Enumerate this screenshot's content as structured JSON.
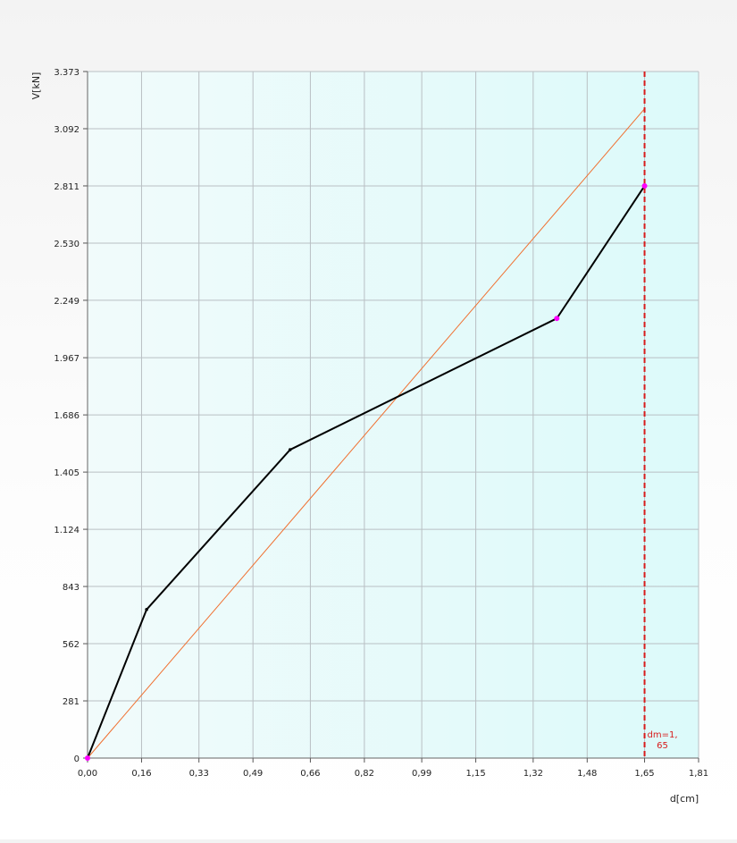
{
  "chart_data": {
    "type": "line",
    "xlabel": "d[cm]",
    "ylabel": "V[kN]",
    "xlim": [
      0,
      1.81
    ],
    "ylim": [
      0,
      3373
    ],
    "x_ticks": [
      0,
      0.16,
      0.33,
      0.49,
      0.66,
      0.82,
      0.99,
      1.15,
      1.32,
      1.48,
      1.65,
      1.81
    ],
    "x_tick_labels": [
      "0,00",
      "0,16",
      "0,33",
      "0,49",
      "0,66",
      "0,82",
      "0,99",
      "1,15",
      "1,32",
      "1,48",
      "1,65",
      "1,81"
    ],
    "y_ticks": [
      0,
      281,
      562,
      843,
      1124,
      1405,
      1686,
      1967,
      2249,
      2530,
      2811,
      3092,
      3373
    ],
    "y_tick_labels": [
      "0",
      "281",
      "562",
      "843",
      "1.124",
      "1.405",
      "1.686",
      "1.967",
      "2.249",
      "2.530",
      "2.811",
      "3.092",
      "3.373"
    ],
    "grid": true,
    "series": [
      {
        "color": "#000000",
        "x": [
          0,
          0.175,
          0.6,
          1.39,
          1.65
        ],
        "y": [
          0,
          730,
          1515,
          2160,
          2811
        ]
      },
      {
        "color": "#f07030",
        "x": [
          0,
          1.65
        ],
        "y": [
          0,
          3190
        ]
      }
    ],
    "markers": {
      "color": "#ff00ff",
      "x": [
        0,
        1.39,
        1.65
      ],
      "y": [
        0,
        2160,
        2811
      ]
    },
    "vline": {
      "x": 1.65,
      "color": "#d81c1c",
      "label_lines": [
        "dm=1,",
        "65"
      ]
    }
  }
}
